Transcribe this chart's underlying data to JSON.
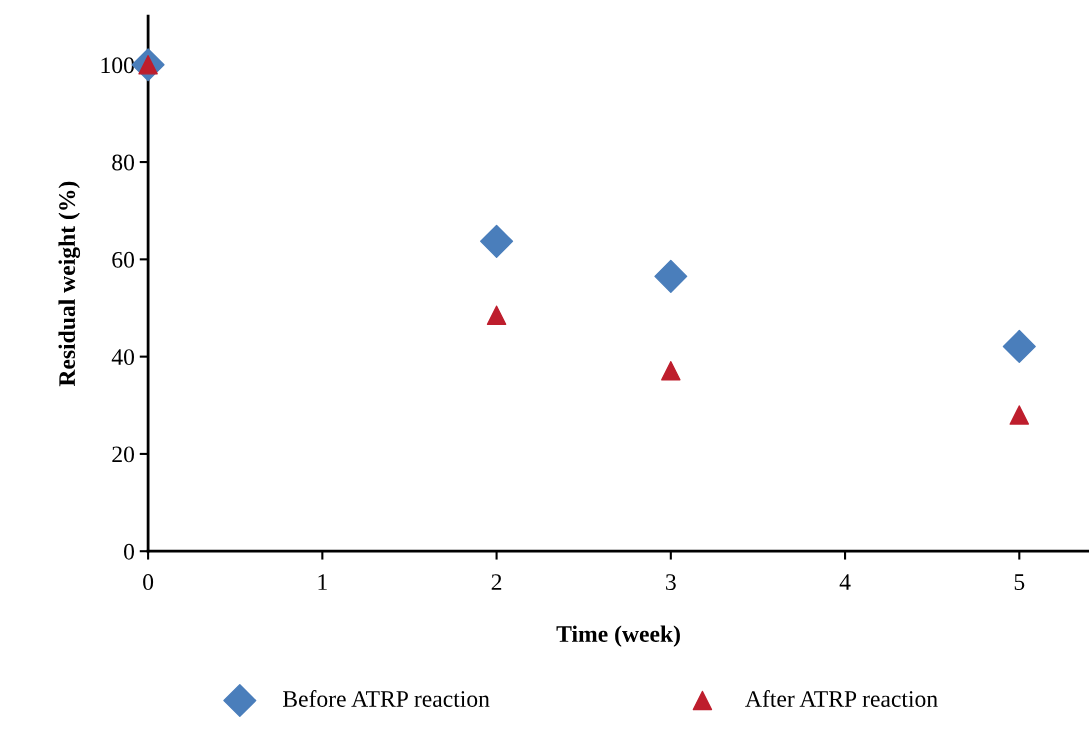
{
  "chart_data": {
    "type": "scatter",
    "xlabel": "Time (week)",
    "ylabel": "Residual weight (%)",
    "xlim": [
      0,
      5.4
    ],
    "xticks": [
      0,
      1,
      2,
      3,
      4,
      5
    ],
    "ylim": [
      0,
      110
    ],
    "yticks": [
      0,
      20,
      40,
      60,
      80,
      100
    ],
    "grid": false,
    "legend": "bottom",
    "series": [
      {
        "name": "Before ATRP reaction",
        "color": "#4a7ebb",
        "marker": "diamond",
        "x": [
          0,
          2,
          3,
          5
        ],
        "values": [
          100,
          63.7,
          56.5,
          42.1
        ]
      },
      {
        "name": "After ATRP reaction",
        "color": "#be1e2d",
        "marker": "triangle",
        "x": [
          0,
          2,
          3,
          5
        ],
        "values": [
          100,
          48.5,
          37.1,
          28.0
        ]
      }
    ]
  }
}
